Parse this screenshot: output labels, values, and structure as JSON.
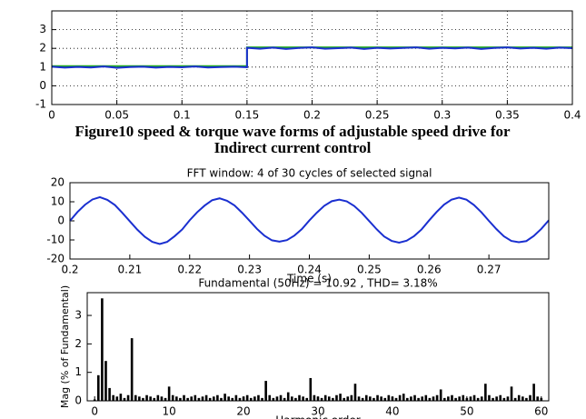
{
  "chart_data": [
    {
      "type": "line",
      "caption": [
        "Figure10 speed & torque wave forms of adjustable speed drive for",
        "Indirect current control"
      ],
      "series": [
        {
          "color": "#22aa22",
          "x": [
            0,
            0.15,
            0.15,
            0.4
          ],
          "values": [
            1.05,
            1.05,
            2.05,
            2.05
          ]
        },
        {
          "color": "#1a2fd0",
          "x": [
            0,
            0.01,
            0.02,
            0.03,
            0.04,
            0.05,
            0.06,
            0.07,
            0.08,
            0.09,
            0.1,
            0.11,
            0.12,
            0.13,
            0.14,
            0.15,
            0.15,
            0.16,
            0.17,
            0.18,
            0.19,
            0.2,
            0.21,
            0.22,
            0.23,
            0.24,
            0.25,
            0.26,
            0.27,
            0.28,
            0.29,
            0.3,
            0.31,
            0.32,
            0.33,
            0.34,
            0.35,
            0.36,
            0.37,
            0.38,
            0.39,
            0.4
          ],
          "values": [
            1.02,
            0.97,
            1.01,
            0.98,
            1.03,
            0.96,
            1.0,
            1.02,
            0.97,
            1.01,
            0.99,
            1.03,
            0.98,
            1.0,
            1.02,
            0.99,
            2.03,
            1.98,
            2.04,
            1.97,
            2.02,
            2.05,
            1.98,
            2.01,
            2.04,
            1.97,
            2.03,
            1.99,
            2.02,
            2.05,
            1.98,
            2.03,
            2.0,
            2.04,
            1.97,
            2.02,
            2.05,
            1.99,
            2.03,
            1.98,
            2.04,
            2.01
          ]
        }
      ],
      "xlim": [
        0,
        0.4
      ],
      "xticks": [
        0,
        0.05,
        0.1,
        0.15,
        0.2,
        0.25,
        0.3,
        0.35,
        0.4
      ],
      "ylim": [
        -1,
        4
      ],
      "yticks": [
        -1,
        0,
        1,
        2,
        3
      ],
      "grid": true
    },
    {
      "type": "line",
      "title": "FFT window: 4 of 30 cycles of selected signal",
      "xlabel": "Time (s)",
      "series": [
        {
          "color": "#1a2fd0",
          "x": [
            0.2,
            0.20125,
            0.2025,
            0.20375,
            0.205,
            0.20625,
            0.2075,
            0.20875,
            0.21,
            0.21125,
            0.2125,
            0.21375,
            0.215,
            0.21625,
            0.2175,
            0.21875,
            0.22,
            0.22125,
            0.2225,
            0.22375,
            0.225,
            0.22625,
            0.2275,
            0.22875,
            0.23,
            0.23125,
            0.2325,
            0.23375,
            0.235,
            0.23625,
            0.2375,
            0.23875,
            0.24,
            0.24125,
            0.2425,
            0.24375,
            0.245,
            0.24625,
            0.2475,
            0.24875,
            0.25,
            0.25125,
            0.2525,
            0.25375,
            0.255,
            0.25625,
            0.2575,
            0.25875,
            0.26,
            0.26125,
            0.2625,
            0.26375,
            0.265,
            0.26625,
            0.2675,
            0.26875,
            0.27,
            0.27125,
            0.2725,
            0.27375,
            0.275,
            0.27625,
            0.2775,
            0.27875,
            0.28
          ],
          "values": [
            0,
            4.6,
            8.4,
            11.2,
            12.4,
            11.0,
            8.3,
            4.2,
            -0.2,
            -4.6,
            -8.3,
            -11.0,
            -12.1,
            -11.0,
            -8.0,
            -4.5,
            0.3,
            4.5,
            8.0,
            10.8,
            11.8,
            10.5,
            8.1,
            4.3,
            0.1,
            -4.2,
            -7.8,
            -10.2,
            -10.9,
            -10.1,
            -7.7,
            -4.3,
            0.2,
            4.3,
            7.9,
            10.3,
            11.1,
            10.2,
            7.8,
            4.2,
            -0.1,
            -4.4,
            -8.2,
            -10.5,
            -11.4,
            -10.4,
            -8.0,
            -4.5,
            0.2,
            4.6,
            8.5,
            11.1,
            12.2,
            11.1,
            8.3,
            4.5,
            0.0,
            -4.3,
            -8.1,
            -10.5,
            -11.2,
            -10.6,
            -7.9,
            -4.2,
            0.3
          ]
        }
      ],
      "xlim": [
        0.2,
        0.28
      ],
      "xticks": [
        0.2,
        0.21,
        0.22,
        0.23,
        0.24,
        0.25,
        0.26,
        0.27
      ],
      "ylim": [
        -20,
        20
      ],
      "yticks": [
        -20,
        -10,
        0,
        10,
        20
      ],
      "grid": false
    },
    {
      "type": "bar",
      "title": "Fundamental (50Hz) = 10.92 , THD= 3.18%",
      "xlabel": "Harmonic order",
      "ylabel": "Mag (% of Fundamental)",
      "color": "#000000",
      "x": [
        0,
        0.5,
        1,
        1.5,
        2,
        2.5,
        3,
        3.5,
        4,
        4.5,
        5,
        5.5,
        6,
        6.5,
        7,
        7.5,
        8,
        8.5,
        9,
        9.5,
        10,
        10.5,
        11,
        11.5,
        12,
        12.5,
        13,
        13.5,
        14,
        14.5,
        15,
        15.5,
        16,
        16.5,
        17,
        17.5,
        18,
        18.5,
        19,
        19.5,
        20,
        20.5,
        21,
        21.5,
        22,
        22.5,
        23,
        23.5,
        24,
        24.5,
        25,
        25.5,
        26,
        26.5,
        27,
        27.5,
        28,
        28.5,
        29,
        29.5,
        30,
        30.5,
        31,
        31.5,
        32,
        32.5,
        33,
        33.5,
        34,
        34.5,
        35,
        35.5,
        36,
        36.5,
        37,
        37.5,
        38,
        38.5,
        39,
        39.5,
        40,
        40.5,
        41,
        41.5,
        42,
        42.5,
        43,
        43.5,
        44,
        44.5,
        45,
        45.5,
        46,
        46.5,
        47,
        47.5,
        48,
        48.5,
        49,
        49.5,
        50,
        50.5,
        51,
        51.5,
        52,
        52.5,
        53,
        53.5,
        54,
        54.5,
        55,
        55.5,
        56,
        56.5,
        57,
        57.5,
        58,
        58.5,
        59,
        59.5,
        60
      ],
      "values": [
        0.05,
        0.9,
        3.6,
        1.4,
        0.45,
        0.2,
        0.15,
        0.25,
        0.1,
        0.2,
        2.2,
        0.2,
        0.15,
        0.1,
        0.2,
        0.15,
        0.1,
        0.2,
        0.15,
        0.1,
        0.5,
        0.2,
        0.15,
        0.1,
        0.2,
        0.1,
        0.15,
        0.2,
        0.1,
        0.15,
        0.2,
        0.1,
        0.15,
        0.2,
        0.1,
        0.25,
        0.15,
        0.1,
        0.2,
        0.1,
        0.15,
        0.2,
        0.1,
        0.15,
        0.2,
        0.1,
        0.7,
        0.2,
        0.1,
        0.15,
        0.2,
        0.1,
        0.3,
        0.15,
        0.1,
        0.2,
        0.15,
        0.1,
        0.8,
        0.2,
        0.15,
        0.1,
        0.2,
        0.15,
        0.1,
        0.2,
        0.25,
        0.1,
        0.15,
        0.2,
        0.6,
        0.15,
        0.1,
        0.2,
        0.15,
        0.1,
        0.2,
        0.15,
        0.1,
        0.2,
        0.15,
        0.1,
        0.2,
        0.25,
        0.1,
        0.15,
        0.2,
        0.1,
        0.15,
        0.2,
        0.1,
        0.15,
        0.2,
        0.4,
        0.1,
        0.15,
        0.2,
        0.1,
        0.15,
        0.2,
        0.1,
        0.15,
        0.2,
        0.1,
        0.15,
        0.6,
        0.2,
        0.1,
        0.15,
        0.2,
        0.1,
        0.15,
        0.5,
        0.1,
        0.2,
        0.15,
        0.1,
        0.2,
        0.6,
        0.15,
        0.1
      ],
      "xlim": [
        -1,
        61
      ],
      "xticks": [
        0,
        10,
        20,
        30,
        40,
        50,
        60
      ],
      "ylim": [
        0,
        3.8
      ],
      "yticks": [
        0,
        1,
        2,
        3
      ],
      "grid": false
    }
  ]
}
